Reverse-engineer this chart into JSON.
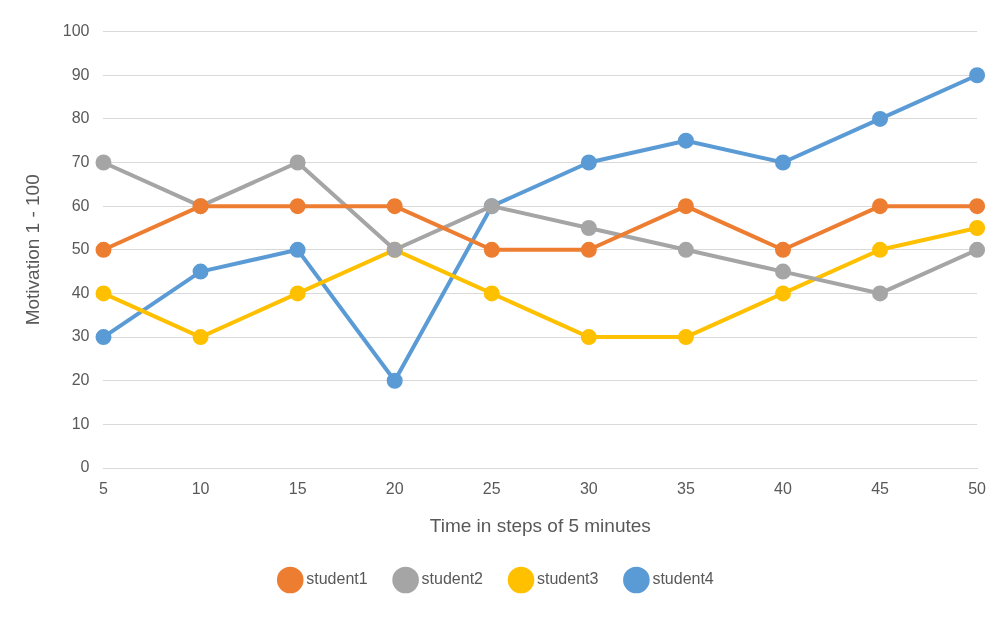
{
  "chart_data": {
    "type": "line",
    "xlabel": "Time in steps of 5 minutes",
    "ylabel": "Motivation 1 - 100",
    "categories": [
      "5",
      "10",
      "15",
      "20",
      "25",
      "30",
      "35",
      "40",
      "45",
      "50"
    ],
    "series": [
      {
        "name": "student1",
        "color": "#ed7d31",
        "values": [
          50,
          60,
          60,
          60,
          50,
          50,
          60,
          50,
          60,
          60
        ]
      },
      {
        "name": "student2",
        "color": "#a5a5a5",
        "values": [
          70,
          60,
          70,
          50,
          60,
          55,
          50,
          45,
          40,
          50
        ]
      },
      {
        "name": "student3",
        "color": "#ffc000",
        "values": [
          40,
          30,
          40,
          50,
          40,
          30,
          30,
          40,
          50,
          55
        ]
      },
      {
        "name": "student4",
        "color": "#5b9bd5",
        "values": [
          30,
          45,
          50,
          20,
          60,
          70,
          75,
          70,
          80,
          90
        ]
      }
    ],
    "ylim": [
      0,
      100
    ],
    "yticks": [
      0,
      10,
      20,
      30,
      40,
      50,
      60,
      70,
      80,
      90,
      100
    ],
    "grid": "y",
    "legend": "bottom",
    "marker": "circle",
    "line_style": "solid"
  }
}
